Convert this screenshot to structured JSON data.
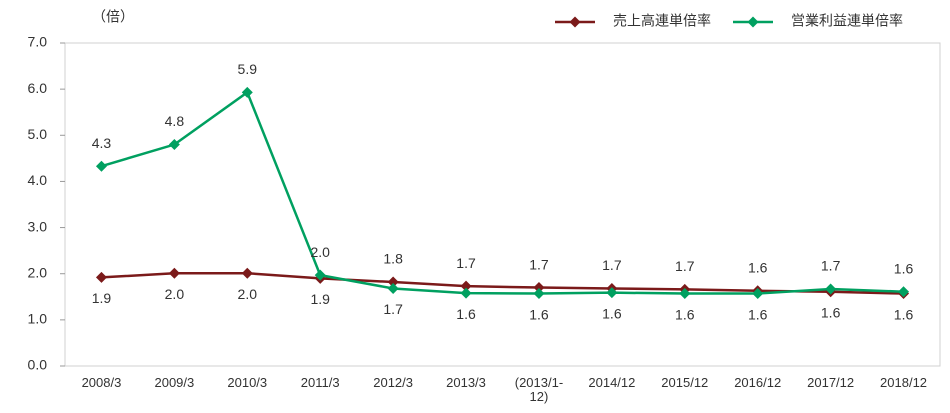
{
  "chart_data": {
    "type": "line",
    "unit_label": "（倍）",
    "categories": [
      "2008/3",
      "2009/3",
      "2010/3",
      "2011/3",
      "2012/3",
      "2013/3",
      "(2013/1-12)",
      "2014/12",
      "2015/12",
      "2016/12",
      "2017/12",
      "2018/12"
    ],
    "series": [
      {
        "name": "売上高連単倍率",
        "color": "#7b1a1a",
        "values": [
          1.92,
          2.01,
          2.01,
          1.9,
          1.82,
          1.73,
          1.7,
          1.68,
          1.66,
          1.63,
          1.61,
          1.57
        ],
        "value_labels": [
          "1.9",
          "2.0",
          "2.0",
          "1.9",
          "1.8",
          "1.7",
          "1.7",
          "1.7",
          "1.7",
          "1.6",
          "1.6",
          "1.6"
        ]
      },
      {
        "name": "営業利益連単倍率",
        "color": "#00a060",
        "values": [
          4.33,
          4.8,
          5.93,
          1.97,
          1.68,
          1.58,
          1.57,
          1.59,
          1.57,
          1.57,
          1.67,
          1.61
        ],
        "value_labels": [
          "4.3",
          "4.8",
          "5.9",
          "2.0",
          "1.7",
          "1.6",
          "1.6",
          "1.6",
          "1.6",
          "1.6",
          "1.7",
          "1.6"
        ]
      }
    ],
    "ylim": [
      0,
      7
    ],
    "yticks": [
      {
        "value": 0,
        "label": "0.0"
      },
      {
        "value": 1,
        "label": "1.0"
      },
      {
        "value": 2,
        "label": "2.0"
      },
      {
        "value": 3,
        "label": "3.0"
      },
      {
        "value": 4,
        "label": "4.0"
      },
      {
        "value": 5,
        "label": "5.0"
      },
      {
        "value": 6,
        "label": "6.0"
      },
      {
        "value": 7,
        "label": "7.0"
      }
    ],
    "legend": "top-right"
  }
}
